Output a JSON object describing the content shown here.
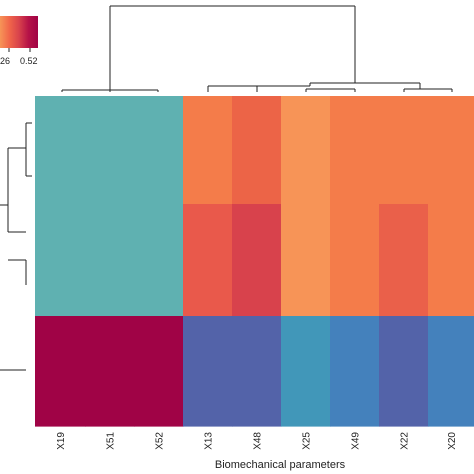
{
  "chart_data": {
    "type": "heatmap",
    "columns": [
      "X19",
      "X51",
      "X52",
      "X13",
      "X48",
      "X25",
      "X49",
      "X22",
      "X20"
    ],
    "xlabel": "Biomechanical parameters",
    "ylabel": "",
    "row_count": 5,
    "cell_colors": [
      [
        "#5fb1b1",
        "#5fb1b1",
        "#5fb1b1",
        "#f47c4a",
        "#ec6447",
        "#f79457",
        "#f47c4a",
        "#f47c4a",
        "#f47c4a"
      ],
      [
        "#5fb1b1",
        "#5fb1b1",
        "#5fb1b1",
        "#f47c4a",
        "#ec6447",
        "#f79457",
        "#f47c4a",
        "#f47c4a",
        "#f47c4a"
      ],
      [
        "#5fb1b1",
        "#5fb1b1",
        "#5fb1b1",
        "#e9594b",
        "#d8424c",
        "#f79457",
        "#f47c4a",
        "#ea604a",
        "#f47c4a"
      ],
      [
        "#5fb1b1",
        "#5fb1b1",
        "#5fb1b1",
        "#e9594b",
        "#d8424c",
        "#f79457",
        "#f47c4a",
        "#ea604a",
        "#f47c4a"
      ],
      [
        "#a00346",
        "#a00346",
        "#a00346",
        "#5363a9",
        "#5363a9",
        "#4197b9",
        "#4481bc",
        "#5363a9",
        "#4481bc"
      ]
    ],
    "legend": {
      "tick_labels": [
        "26",
        "0.52"
      ],
      "colors": [
        "#f79457",
        "#f0654a",
        "#d8424c",
        "#b51247",
        "#a00346"
      ]
    },
    "dendrograms": [
      "top",
      "left"
    ]
  }
}
